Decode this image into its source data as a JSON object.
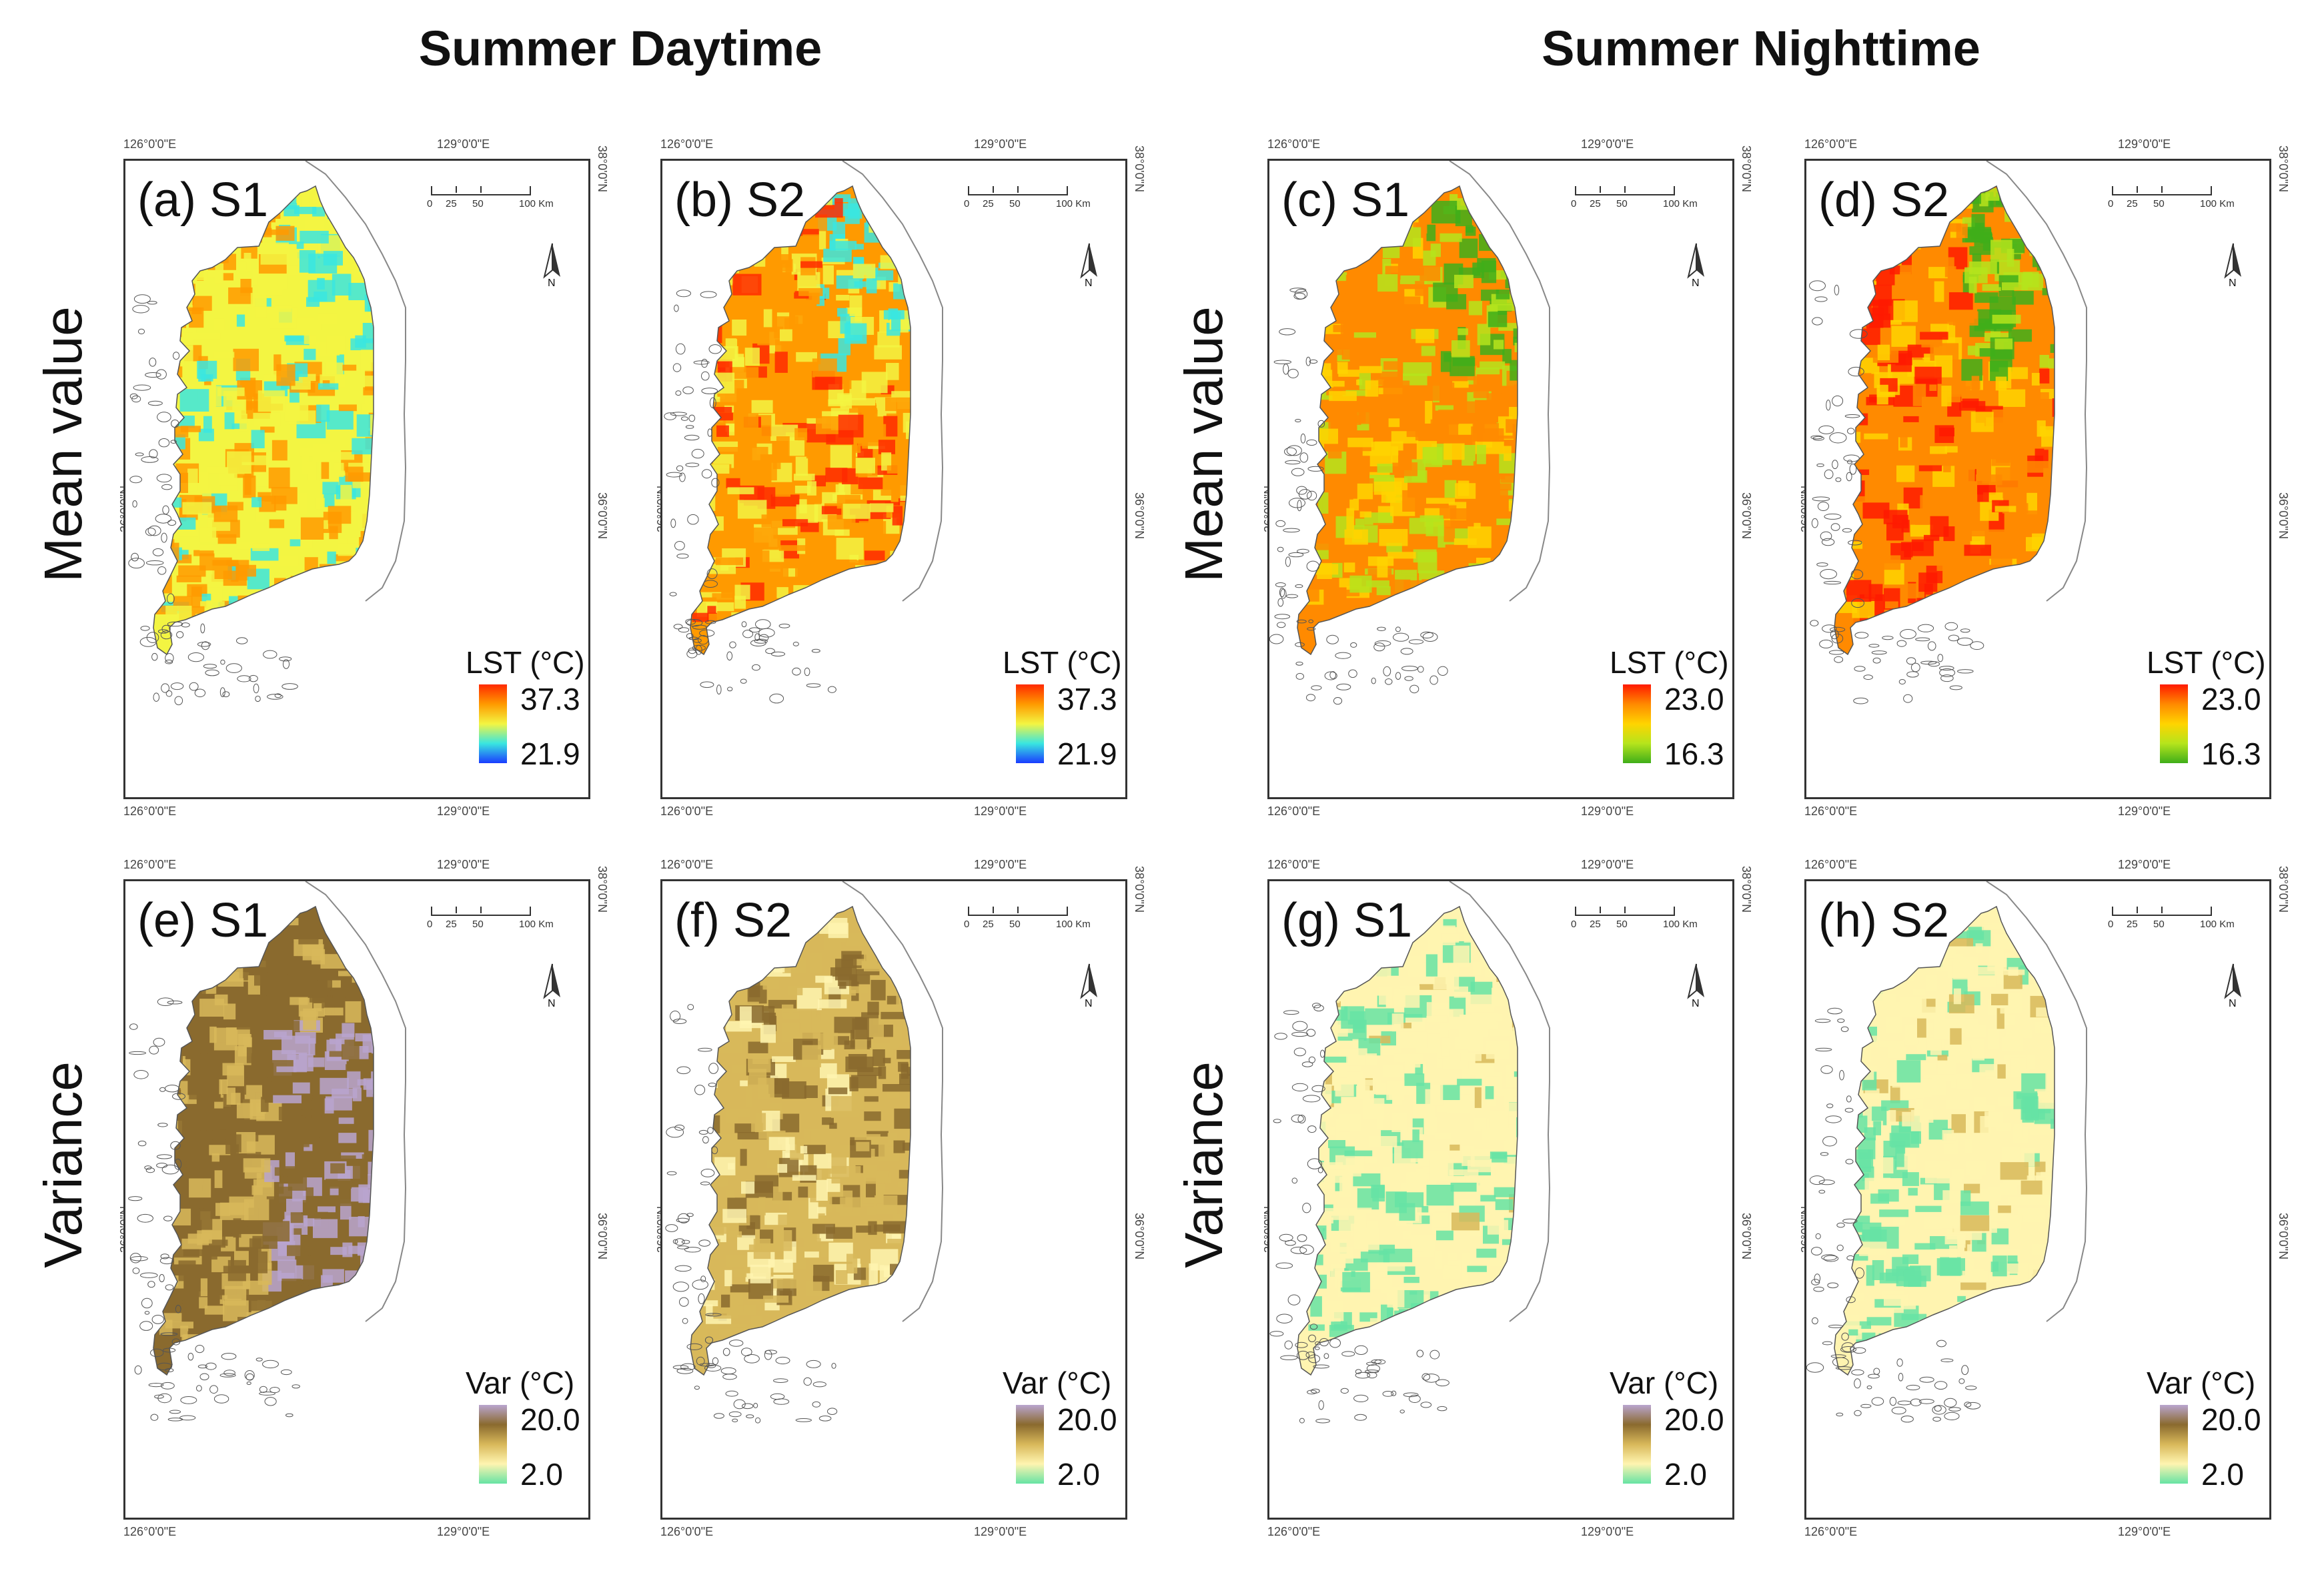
{
  "titles": {
    "daytime": "Summer Daytime",
    "nighttime": "Summer Nighttime"
  },
  "row_labels": {
    "mean": "Mean value",
    "variance": "Variance"
  },
  "coords": {
    "lon_west": "126°0'0\"E",
    "lon_east": "129°0'0\"E",
    "lat_north": "38°0'0\"N",
    "lat_mid": "36°0'0\"N"
  },
  "scalebar": {
    "t0": "0",
    "t1": "25",
    "t2": "50",
    "t3": "100 Km"
  },
  "north_label": "N",
  "panels": [
    {
      "label": "(a) S1",
      "legend_title": "LST (°C)",
      "max": "37.3",
      "min": "21.9"
    },
    {
      "label": "(b) S2",
      "legend_title": "LST (°C)",
      "max": "37.3",
      "min": "21.9"
    },
    {
      "label": "(c) S1",
      "legend_title": "LST (°C)",
      "max": "23.0",
      "min": "16.3"
    },
    {
      "label": "(d) S2",
      "legend_title": "LST (°C)",
      "max": "23.0",
      "min": "16.3"
    },
    {
      "label": "(e) S1",
      "legend_title": "Var (°C)",
      "max": "20.0",
      "min": "2.0"
    },
    {
      "label": "(f) S2",
      "legend_title": "Var (°C)",
      "max": "20.0",
      "min": "2.0"
    },
    {
      "label": "(g) S1",
      "legend_title": "Var (°C)",
      "max": "20.0",
      "min": "2.0"
    },
    {
      "label": "(h) S2",
      "legend_title": "Var (°C)",
      "max": "20.0",
      "min": "2.0"
    }
  ],
  "colors": {
    "lst_day": [
      "#1a3cff",
      "#39e6e0",
      "#f3f542",
      "#ff9a00",
      "#ff2a00"
    ],
    "lst_night": [
      "#3fae1a",
      "#b5e41c",
      "#ffd400",
      "#ff8a00",
      "#ff1a00"
    ],
    "var": [
      "#66e3a4",
      "#fff4b0",
      "#d8b85a",
      "#8a6a2e",
      "#b9a5cf"
    ]
  }
}
